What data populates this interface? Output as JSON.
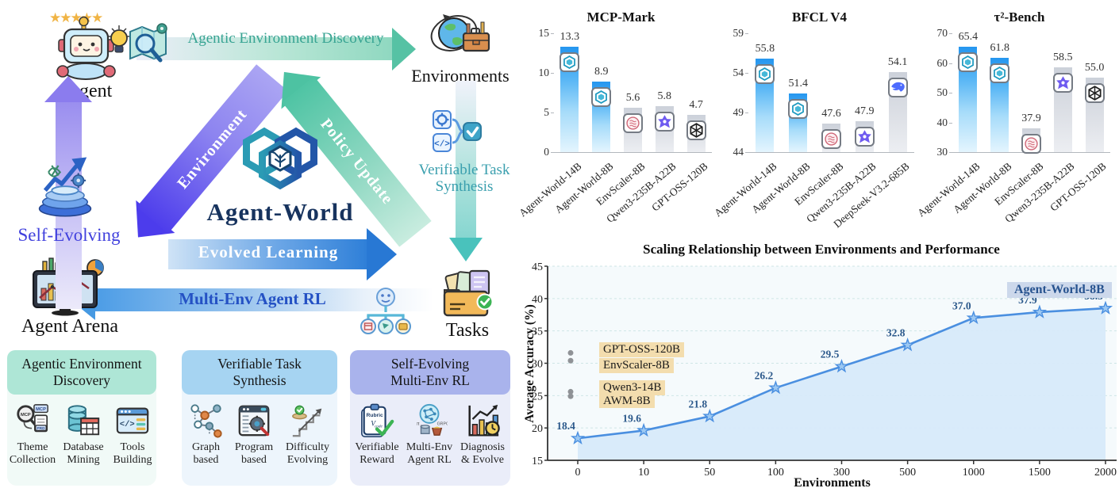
{
  "diagram": {
    "agent_label": "Agent",
    "environments_label": "Environments",
    "tasks_label": "Tasks",
    "arena_label": "Agent Arena",
    "self_evolving_label": "Self-Evolving",
    "discovery_label": "Agentic Environment Discovery",
    "synthesis_label": "Verifiable Task Synthesis",
    "multi_env_label": "Multi-Env Agent RL",
    "cycle": {
      "environment": "Environment",
      "policy_update": "Policy Update",
      "evolved_learning": "Evolved Learning"
    },
    "logo_title": "Agent-World",
    "cards": [
      {
        "title": "Agentic Environment Discovery",
        "header_color": "#aee6d6",
        "body_color": "#f1faf7",
        "items": [
          {
            "label": "Theme Collection",
            "icon": "theme-collection-icon"
          },
          {
            "label": "Database Mining",
            "icon": "database-mining-icon"
          },
          {
            "label": "Tools Building",
            "icon": "tools-building-icon"
          }
        ]
      },
      {
        "title": "Verifiable Task Synthesis",
        "header_color": "#a6d4f2",
        "body_color": "#edf5fc",
        "items": [
          {
            "label": "Graph based",
            "icon": "graph-based-icon"
          },
          {
            "label": "Program based",
            "icon": "program-based-icon"
          },
          {
            "label": "Difficulty Evolving",
            "icon": "difficulty-evolving-icon"
          }
        ]
      },
      {
        "title": "Self-Evolving Multi-Env RL",
        "header_color": "#a9b3ec",
        "body_color": "#eaedf9",
        "items": [
          {
            "label": "Verifiable Reward",
            "icon": "verifiable-reward-icon"
          },
          {
            "label": "Multi-Env Agent RL",
            "icon": "multi-env-rl-icon"
          },
          {
            "label": "Diagnosis & Evolve",
            "icon": "diagnosis-evolve-icon"
          }
        ]
      }
    ]
  },
  "colors": {
    "bar_blue_gradient": [
      "#2596ef",
      "#56b5f5",
      "#a7dcfa",
      "#e4f5fe"
    ],
    "bar_gray_gradient": [
      "#ccd1da",
      "#e2e5ea",
      "#eceef2"
    ],
    "line": "#4a8fe0",
    "area_fill": "#d7eafa",
    "marker_fill": "#9cc8f2",
    "value_label": "#2d5a8c",
    "annotation_bg": "#f3ddae",
    "end_label_bg": "#ccd8eb",
    "end_label_color": "#27538f",
    "grid": "#cfe6e6"
  },
  "chart_data": [
    {
      "type": "bar",
      "title": "MCP-Mark",
      "categories": [
        "Agent-World-14B",
        "Agent-World-8B",
        "EnvScaler-8B",
        "Qwen3-235B-A22B",
        "GPT-OSS-120B"
      ],
      "values": [
        13.3,
        8.9,
        5.6,
        5.8,
        4.7
      ],
      "logos": [
        "agent-world",
        "agent-world",
        "envscaler",
        "qwen",
        "gpt-oss"
      ],
      "highlight": [
        true,
        true,
        false,
        false,
        false
      ],
      "ylim": [
        0,
        15
      ],
      "yticks": [
        0,
        5,
        10,
        15
      ]
    },
    {
      "type": "bar",
      "title": "BFCL V4",
      "categories": [
        "Agent-World-14B",
        "Agent-World-8B",
        "EnvScaler-8B",
        "Qwen3-235B-A22B",
        "DeepSeek-V3.2-685B"
      ],
      "values": [
        55.8,
        51.4,
        47.6,
        47.9,
        54.1
      ],
      "logos": [
        "agent-world",
        "agent-world",
        "envscaler",
        "qwen",
        "deepseek"
      ],
      "highlight": [
        true,
        true,
        false,
        false,
        false
      ],
      "ylim": [
        44,
        59
      ],
      "yticks": [
        44,
        49,
        54,
        59
      ]
    },
    {
      "type": "bar",
      "title": "τ²-Bench",
      "categories": [
        "Agent-World-14B",
        "Agent-World-8B",
        "EnvScaler-8B",
        "Qwen3-235B-A22B",
        "GPT-OSS-120B"
      ],
      "values": [
        65.4,
        61.8,
        37.9,
        58.5,
        55.0
      ],
      "logos": [
        "agent-world",
        "agent-world",
        "envscaler",
        "qwen",
        "gpt-oss"
      ],
      "highlight": [
        true,
        true,
        false,
        false,
        false
      ],
      "ylim": [
        30,
        70
      ],
      "yticks": [
        30,
        40,
        50,
        60,
        70
      ]
    },
    {
      "type": "line",
      "title": "Scaling Relationship between Environments and Performance",
      "xlabel": "Environments",
      "ylabel": "Average Accuracy (%)",
      "x": [
        "0",
        "10",
        "50",
        "100",
        "300",
        "500",
        "1000",
        "1500",
        "2000"
      ],
      "series": [
        {
          "name": "Agent-World-8B",
          "values": [
            18.4,
            19.6,
            21.8,
            26.2,
            29.5,
            32.8,
            37.0,
            37.9,
            38.5
          ]
        }
      ],
      "ylim": [
        15,
        45
      ],
      "yticks": [
        15,
        20,
        25,
        30,
        35,
        40,
        45
      ],
      "grid": true,
      "legend_position": "top-right",
      "end_label": "Agent-World-8B",
      "baselines": [
        {
          "label": "GPT-OSS-120B",
          "value": 31.6,
          "label_value": 32.0
        },
        {
          "label": "EnvScaler-8B",
          "value": 30.4,
          "label_value": 29.6
        },
        {
          "label": "Qwen3-14B",
          "value": 25.6,
          "label_value": 26.1
        },
        {
          "label": "AWM-8B",
          "value": 24.9,
          "label_value": 24.1
        }
      ]
    }
  ]
}
